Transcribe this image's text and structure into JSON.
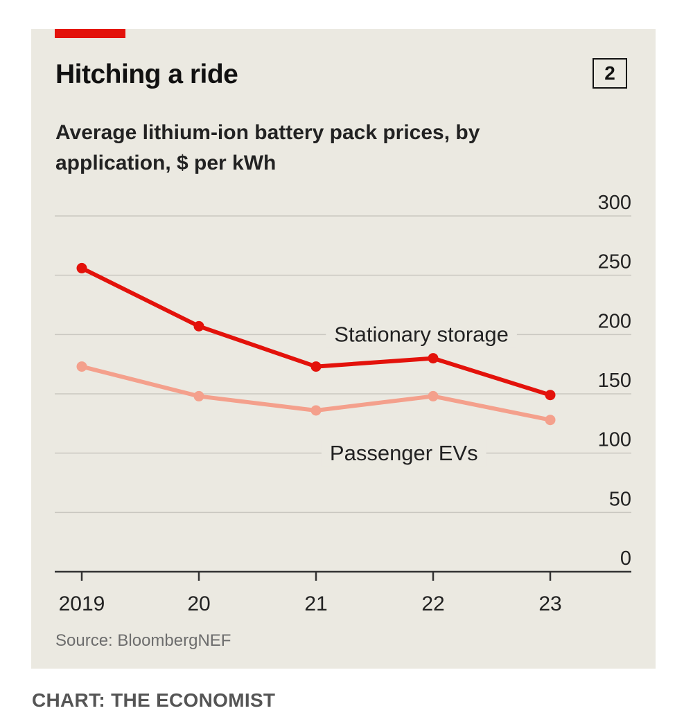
{
  "header": {
    "title": "Hitching a ride",
    "badge": "2",
    "subtitle": "Average lithium-ion battery pack prices, by application, $ per kWh"
  },
  "footer": {
    "source": "Source: BloombergNEF",
    "credit": "CHART: THE ECONOMIST"
  },
  "colors": {
    "background": "#ebe9e1",
    "accent": "#e3120b",
    "stationary": "#e3120b",
    "passenger": "#f4a08c",
    "grid": "#c9c7c0"
  },
  "chart_data": {
    "type": "line",
    "title": "Hitching a ride",
    "subtitle": "Average lithium-ion battery pack prices, by application, $ per kWh",
    "categories": [
      "2019",
      "20",
      "21",
      "22",
      "23"
    ],
    "ylim": [
      0,
      300
    ],
    "yticks": [
      "0",
      "50",
      "100",
      "150",
      "200",
      "250",
      "300"
    ],
    "yaxis_position": "right",
    "grid": true,
    "series": [
      {
        "name": "Stationary storage",
        "values": [
          256,
          207,
          173,
          180,
          149
        ],
        "color": "#e3120b"
      },
      {
        "name": "Passenger EVs",
        "values": [
          173,
          148,
          136,
          148,
          128
        ],
        "color": "#f4a08c"
      }
    ],
    "source": "Source: BloombergNEF"
  }
}
